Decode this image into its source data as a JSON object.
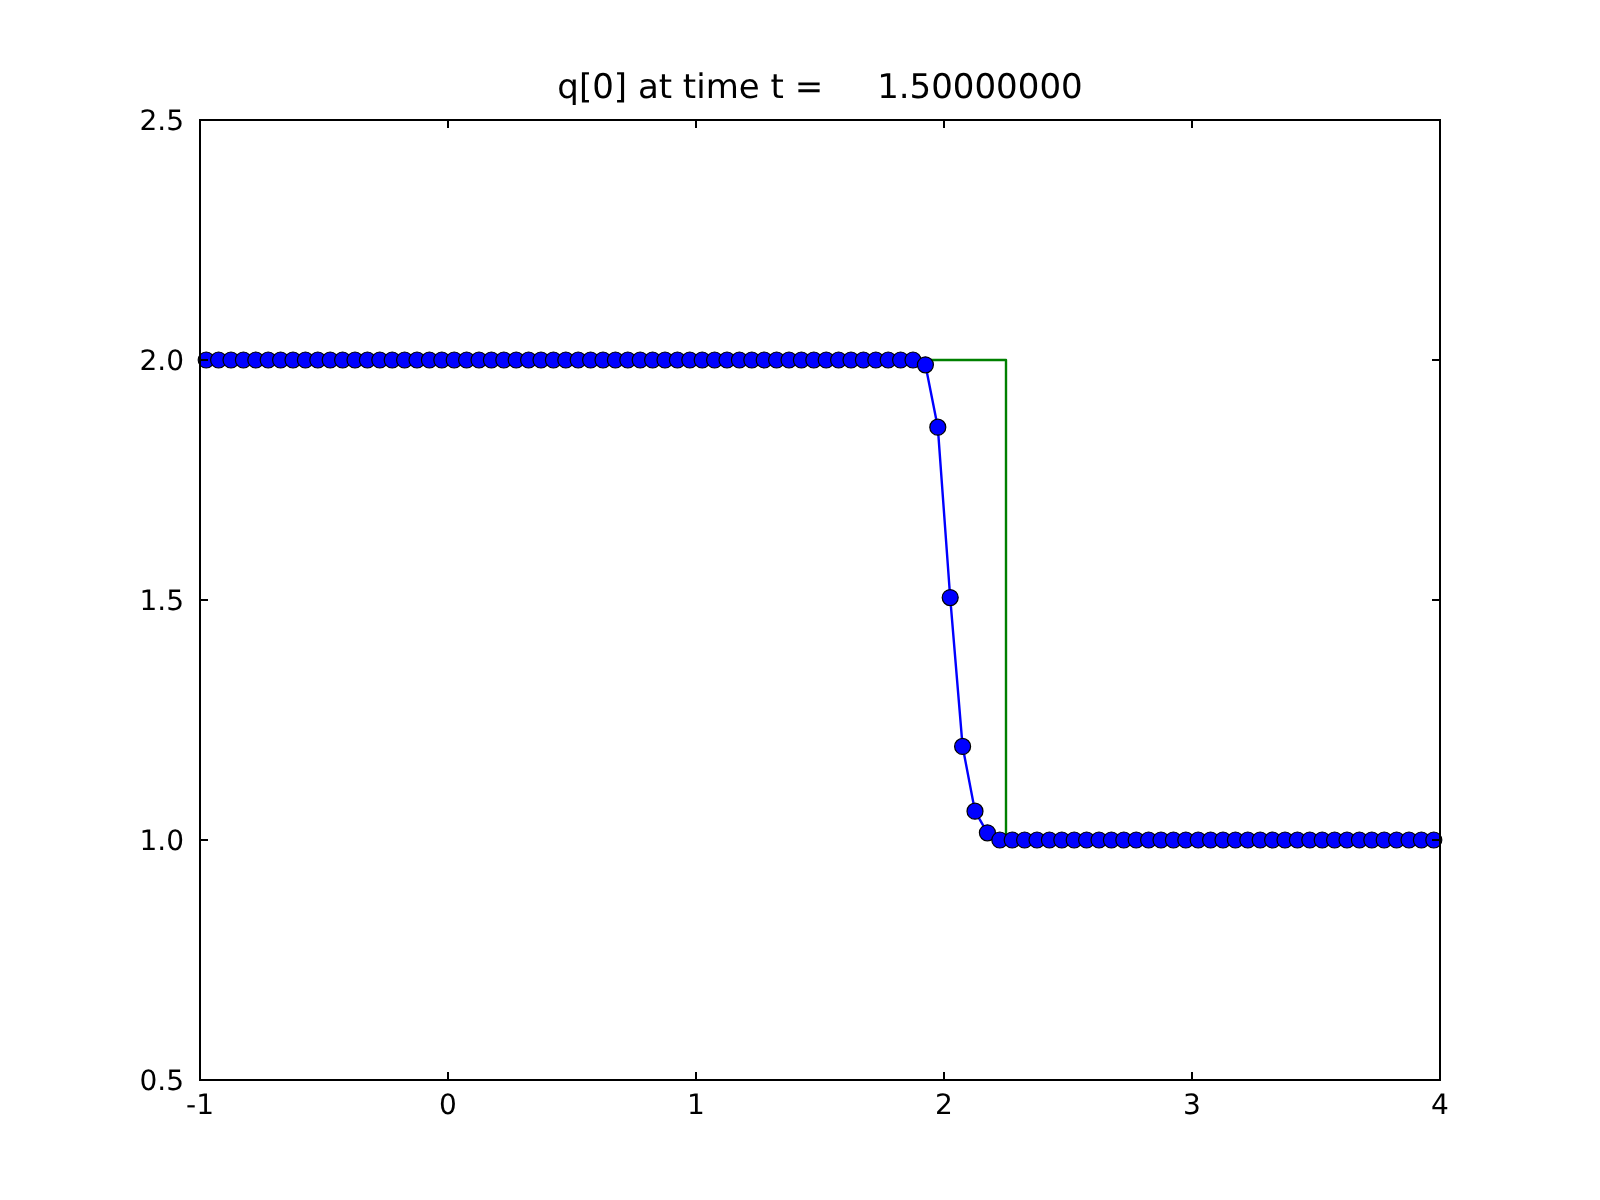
{
  "chart_data": {
    "type": "line",
    "title": "q[0] at time t =     1.50000000",
    "xlim": [
      -1,
      4
    ],
    "xticks": [
      -1,
      0,
      1,
      2,
      3,
      4
    ],
    "ylim": [
      0.5,
      2.5
    ],
    "yticks": [
      {
        "value": 0.5,
        "label": "0.5"
      },
      {
        "value": 1,
        "label": "1.0"
      },
      {
        "value": 1.5,
        "label": "1.5"
      },
      {
        "value": 2,
        "label": "2.0"
      },
      {
        "value": 2.5,
        "label": "2.5"
      }
    ],
    "grid": false,
    "series": [
      {
        "color": "#0000ff",
        "marker": "circle",
        "line_style": "solid",
        "x": [
          -0.975,
          -0.925,
          -0.875,
          -0.825,
          -0.775,
          -0.725,
          -0.675,
          -0.625,
          -0.575,
          -0.525,
          -0.475,
          -0.425,
          -0.375,
          -0.325,
          -0.275,
          -0.225,
          -0.175,
          -0.125,
          -0.075,
          -0.025,
          0.025,
          0.075,
          0.125,
          0.175,
          0.225,
          0.275,
          0.325,
          0.375,
          0.425,
          0.475,
          0.525,
          0.575,
          0.625,
          0.675,
          0.725,
          0.775,
          0.825,
          0.875,
          0.925,
          0.975,
          1.025,
          1.075,
          1.125,
          1.175,
          1.225,
          1.275,
          1.325,
          1.375,
          1.425,
          1.475,
          1.525,
          1.575,
          1.625,
          1.675,
          1.725,
          1.775,
          1.825,
          1.875,
          1.925,
          1.975,
          2.025,
          2.075,
          2.125,
          2.175,
          2.225,
          2.275,
          2.325,
          2.375,
          2.425,
          2.475,
          2.525,
          2.575,
          2.625,
          2.675,
          2.725,
          2.775,
          2.825,
          2.875,
          2.925,
          2.975,
          3.025,
          3.075,
          3.125,
          3.175,
          3.225,
          3.275,
          3.325,
          3.375,
          3.425,
          3.475,
          3.525,
          3.575,
          3.625,
          3.675,
          3.725,
          3.775,
          3.825,
          3.875,
          3.925,
          3.975
        ],
        "values": [
          2,
          2,
          2,
          2,
          2,
          2,
          2,
          2,
          2,
          2,
          2,
          2,
          2,
          2,
          2,
          2,
          2,
          2,
          2,
          2,
          2,
          2,
          2,
          2,
          2,
          2,
          2,
          2,
          2,
          2,
          2,
          2,
          2,
          2,
          2,
          2,
          2,
          2,
          2,
          2,
          2,
          2,
          2,
          2,
          2,
          2,
          2,
          2,
          2,
          2,
          2,
          2,
          2,
          2,
          2,
          2,
          2,
          2,
          1.99,
          1.86,
          1.505,
          1.195,
          1.06,
          1.015,
          1,
          1,
          1,
          1,
          1,
          1,
          1,
          1,
          1,
          1,
          1,
          1,
          1,
          1,
          1,
          1,
          1,
          1,
          1,
          1,
          1,
          1,
          1,
          1,
          1,
          1,
          1,
          1,
          1,
          1,
          1,
          1,
          1,
          1,
          1,
          1
        ]
      },
      {
        "color": "#008000",
        "marker": "none",
        "line_style": "solid",
        "x": [
          -1,
          2.25,
          2.25,
          4
        ],
        "values": [
          2,
          2,
          1,
          1
        ]
      }
    ]
  }
}
